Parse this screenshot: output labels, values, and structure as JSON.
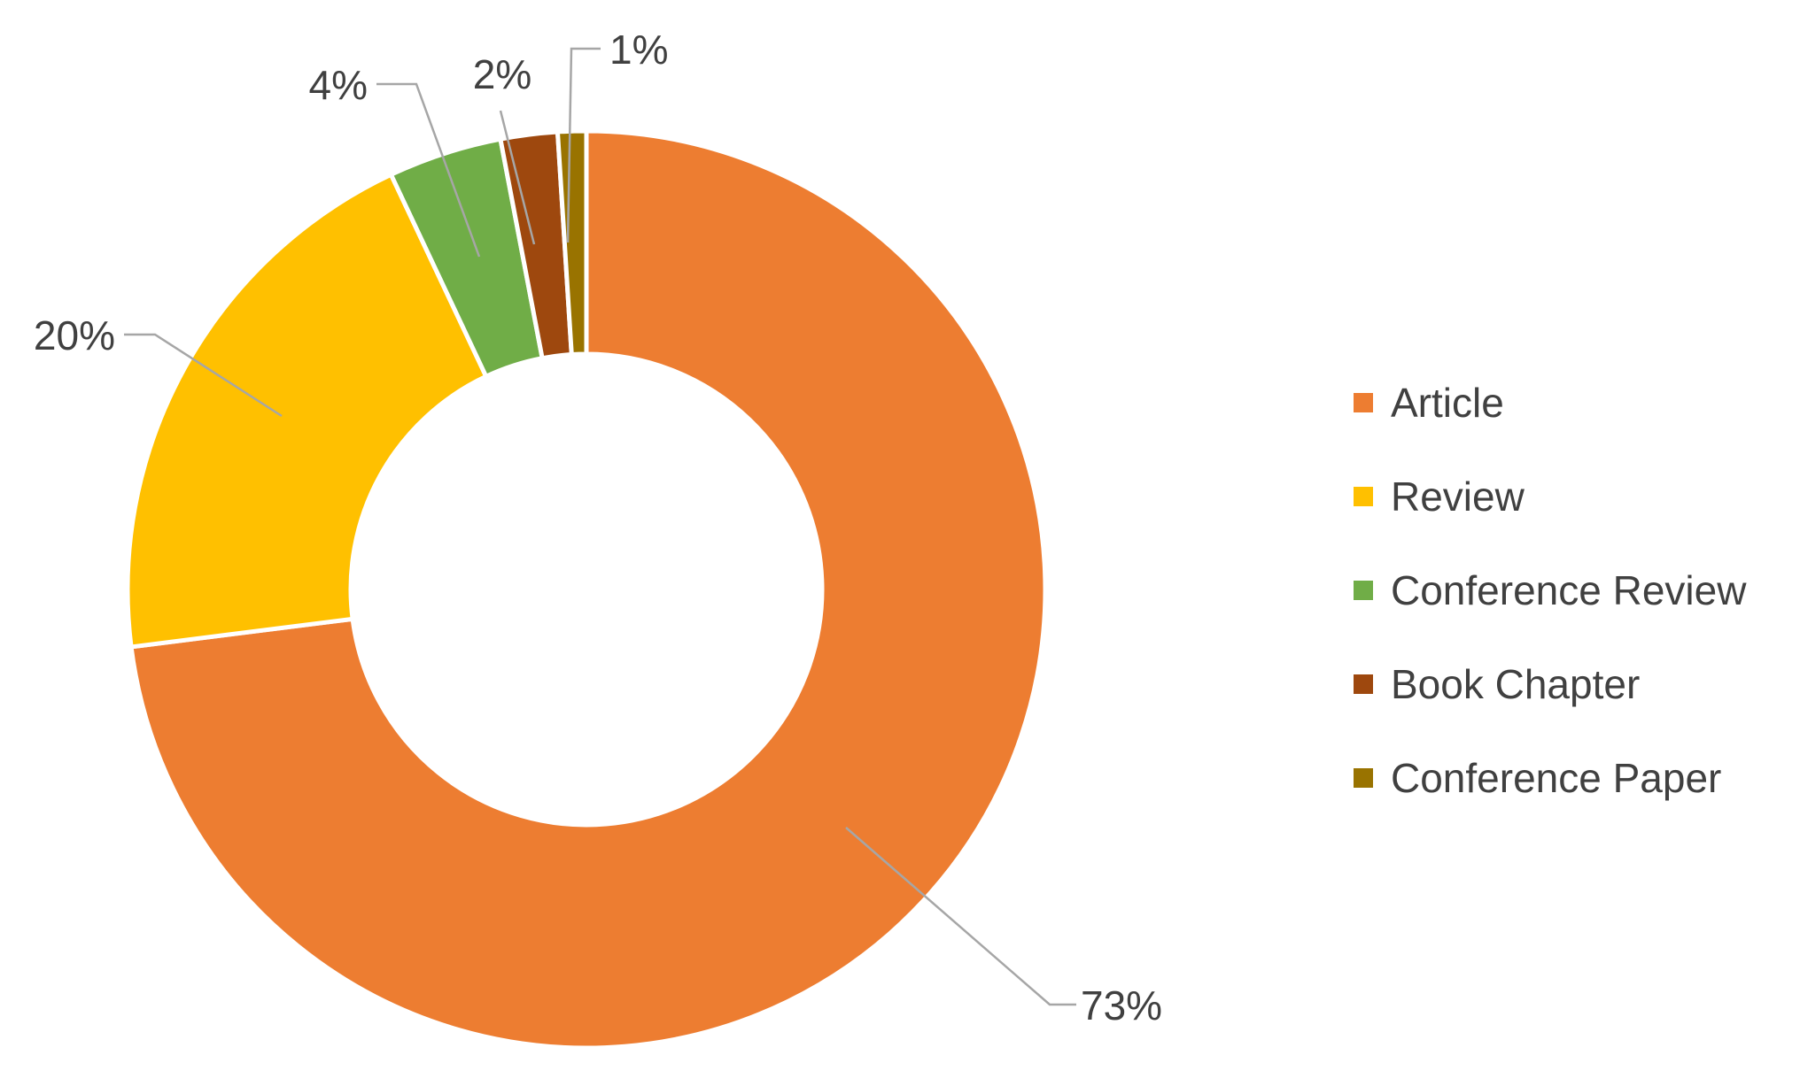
{
  "chart_data": {
    "type": "pie",
    "variant": "donut",
    "categories": [
      "Article",
      "Review",
      "Conference Review",
      "Book Chapter",
      "Conference Paper"
    ],
    "values": [
      73,
      20,
      4,
      2,
      1
    ],
    "data_labels": [
      "73%",
      "20%",
      "4%",
      "2%",
      "1%"
    ],
    "colors": [
      "#ED7D31",
      "#FFC000",
      "#70AD47",
      "#9E480E",
      "#997300"
    ],
    "title": "",
    "legend": {
      "position": "right",
      "entries": [
        "Article",
        "Review",
        "Conference Review",
        "Book Chapter",
        "Conference Paper"
      ]
    }
  }
}
